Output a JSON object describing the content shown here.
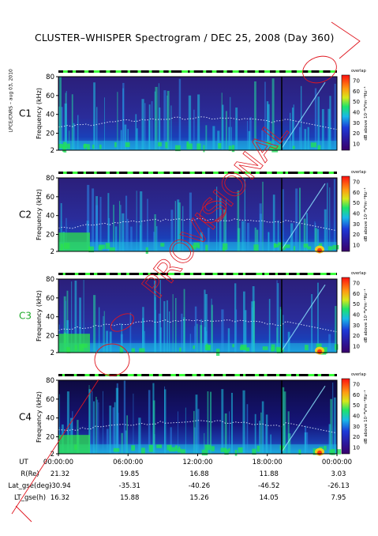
{
  "title": "CLUSTER–WHISPER Spectrogram / DEC 25, 2008 (Day 360)",
  "side_note": "LPCE/CNRS – aug 03, 2010",
  "colors": {
    "sc_label_default": "#000000",
    "sc_label_c3": "#1faa2a",
    "stamp": "#e0161f"
  },
  "chart_data": {
    "type": "heatmap",
    "ylabel": "Frequency (kHz)",
    "colorbar_label": "dB above 10⁻⁸V²m⁻²Hz⁻¹",
    "colorbar_top_word": "overlap",
    "colorbar_ticks": [
      "70",
      "60",
      "50",
      "40",
      "30",
      "20",
      "10"
    ],
    "ylim": [
      2,
      80
    ],
    "y_ticks": [
      "80",
      "60",
      "40",
      "20",
      "2"
    ],
    "panels": [
      {
        "label": "C1"
      },
      {
        "label": "C2"
      },
      {
        "label": "C3"
      },
      {
        "label": "C4"
      }
    ],
    "x_ticks": [
      "00:00:00",
      "06:00:00",
      "12:00:00",
      "18:00:00",
      "00:00:00"
    ],
    "ephemeris": [
      {
        "name": "UT",
        "values": []
      },
      {
        "name": "R(Re)",
        "values": [
          "21.32",
          "19.85",
          "16.88",
          "11.88",
          "3.03"
        ]
      },
      {
        "name": "Lat_gse(deg)",
        "values": [
          "-30.94",
          "-35.31",
          "-40.26",
          "-46.52",
          "-26.13"
        ]
      },
      {
        "name": "LT_gse(h)",
        "values": [
          "16.32",
          "15.88",
          "15.26",
          "14.05",
          "7.95"
        ]
      }
    ]
  },
  "stamp_text": "PROVISIONAL"
}
